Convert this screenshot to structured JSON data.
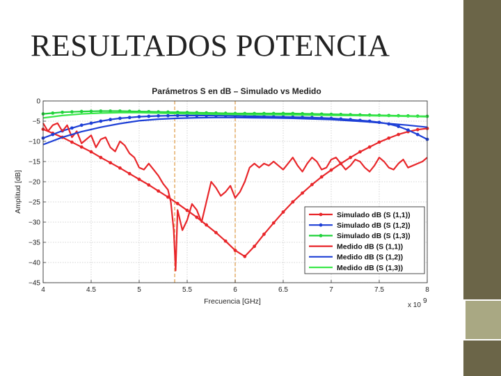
{
  "slide": {
    "title": "RESULTADOS POTENCIA",
    "colors": {
      "bar_dark": "#6b6548",
      "bar_light": "#a9a883",
      "title_text": "#222222"
    }
  },
  "chart_data": {
    "type": "line",
    "title": "Parámetros S en dB – Simulado vs Medido",
    "xlabel": "Frecuencia [GHz]",
    "ylabel": "Amplitud [dB]",
    "x_exponent_label": "x 10",
    "x_exponent_power": "9",
    "xlim": [
      4,
      8
    ],
    "ylim": [
      -45,
      0
    ],
    "xticks": [
      4,
      4.5,
      5,
      5.5,
      6,
      6.5,
      7,
      7.5,
      8
    ],
    "xtick_labels": [
      "4",
      "4.5",
      "5",
      "5.5",
      "6",
      "6.5",
      "7",
      "7.5",
      "8"
    ],
    "yticks": [
      0,
      -5,
      -10,
      -15,
      -20,
      -25,
      -30,
      -35,
      -40,
      -45
    ],
    "ytick_labels": [
      "0",
      "−5",
      "−10",
      "−15",
      "−20",
      "−25",
      "−30",
      "−35",
      "−40",
      "−45"
    ],
    "grid": true,
    "legend_position": "bottom-right",
    "vertical_markers": [
      {
        "x": 5.37,
        "color": "#e0a050"
      },
      {
        "x": 6.0,
        "color": "#e0a050"
      }
    ],
    "series": [
      {
        "name": "Simulado dB (S (1,1))",
        "color": "#e8262a",
        "marker": true,
        "x": [
          4.0,
          4.1,
          4.2,
          4.3,
          4.4,
          4.5,
          4.6,
          4.7,
          4.8,
          4.9,
          5.0,
          5.1,
          5.2,
          5.3,
          5.4,
          5.5,
          5.6,
          5.7,
          5.8,
          5.9,
          6.0,
          6.1,
          6.2,
          6.3,
          6.4,
          6.5,
          6.6,
          6.7,
          6.8,
          6.9,
          7.0,
          7.1,
          7.2,
          7.3,
          7.4,
          7.5,
          7.6,
          7.7,
          7.8,
          7.9,
          8.0
        ],
        "y": [
          -7,
          -8,
          -9,
          -10.2,
          -11.4,
          -12.6,
          -14,
          -15.3,
          -16.6,
          -18,
          -19.4,
          -20.8,
          -22.3,
          -23.8,
          -25.4,
          -27.1,
          -28.8,
          -30.7,
          -32.6,
          -34.7,
          -37,
          -38.5,
          -36,
          -33,
          -30.2,
          -27.5,
          -25,
          -22.8,
          -20.7,
          -18.8,
          -17.1,
          -15.5,
          -14,
          -12.6,
          -11.4,
          -10.2,
          -9.2,
          -8.3,
          -7.6,
          -7.1,
          -6.8
        ]
      },
      {
        "name": "Simulado dB (S (1,2))",
        "color": "#1d3fd6",
        "marker": true,
        "x": [
          4.0,
          4.1,
          4.2,
          4.3,
          4.4,
          4.5,
          4.6,
          4.7,
          4.8,
          4.9,
          5.0,
          5.1,
          5.2,
          5.3,
          5.4,
          5.5,
          5.6,
          5.7,
          5.8,
          5.9,
          6.0,
          6.1,
          6.2,
          6.3,
          6.4,
          6.5,
          6.6,
          6.7,
          6.8,
          6.9,
          7.0,
          7.1,
          7.2,
          7.3,
          7.4,
          7.5,
          7.6,
          7.7,
          7.8,
          7.9,
          8.0
        ],
        "y": [
          -9.2,
          -8.3,
          -7.4,
          -6.7,
          -6.0,
          -5.5,
          -5.0,
          -4.6,
          -4.3,
          -4.1,
          -3.9,
          -3.8,
          -3.7,
          -3.65,
          -3.6,
          -3.6,
          -3.6,
          -3.6,
          -3.62,
          -3.65,
          -3.7,
          -3.75,
          -3.8,
          -3.85,
          -3.9,
          -3.95,
          -4.0,
          -4.05,
          -4.1,
          -4.2,
          -4.3,
          -4.45,
          -4.6,
          -4.8,
          -5.0,
          -5.3,
          -5.7,
          -6.3,
          -7.2,
          -8.3,
          -9.5
        ]
      },
      {
        "name": "Simulado dB (S (1,3))",
        "color": "#1fd23a",
        "marker": true,
        "x": [
          4.0,
          4.1,
          4.2,
          4.3,
          4.4,
          4.5,
          4.6,
          4.7,
          4.8,
          4.9,
          5.0,
          5.1,
          5.2,
          5.3,
          5.4,
          5.5,
          5.6,
          5.7,
          5.8,
          5.9,
          6.0,
          6.1,
          6.2,
          6.3,
          6.4,
          6.5,
          6.6,
          6.7,
          6.8,
          6.9,
          7.0,
          7.1,
          7.2,
          7.3,
          7.4,
          7.5,
          7.6,
          7.7,
          7.8,
          7.9,
          8.0
        ],
        "y": [
          -3.2,
          -3.0,
          -2.8,
          -2.7,
          -2.6,
          -2.55,
          -2.5,
          -2.5,
          -2.5,
          -2.55,
          -2.6,
          -2.65,
          -2.7,
          -2.75,
          -2.8,
          -2.85,
          -2.9,
          -2.95,
          -3.0,
          -3.05,
          -3.1,
          -3.1,
          -3.1,
          -3.1,
          -3.1,
          -3.1,
          -3.1,
          -3.15,
          -3.2,
          -3.25,
          -3.3,
          -3.35,
          -3.4,
          -3.45,
          -3.5,
          -3.55,
          -3.6,
          -3.65,
          -3.7,
          -3.75,
          -3.8
        ]
      },
      {
        "name": "Medido dB (S (1,1))",
        "color": "#e8262a",
        "marker": false,
        "x": [
          4.0,
          4.05,
          4.1,
          4.15,
          4.2,
          4.25,
          4.3,
          4.35,
          4.4,
          4.45,
          4.5,
          4.55,
          4.6,
          4.65,
          4.7,
          4.75,
          4.8,
          4.85,
          4.9,
          4.95,
          5.0,
          5.05,
          5.1,
          5.15,
          5.2,
          5.25,
          5.3,
          5.33,
          5.36,
          5.38,
          5.4,
          5.45,
          5.5,
          5.55,
          5.6,
          5.65,
          5.7,
          5.75,
          5.8,
          5.85,
          5.9,
          5.95,
          6.0,
          6.05,
          6.1,
          6.15,
          6.2,
          6.25,
          6.3,
          6.35,
          6.4,
          6.45,
          6.5,
          6.55,
          6.6,
          6.65,
          6.7,
          6.75,
          6.8,
          6.85,
          6.9,
          6.95,
          7.0,
          7.05,
          7.1,
          7.15,
          7.2,
          7.25,
          7.3,
          7.35,
          7.4,
          7.45,
          7.5,
          7.55,
          7.6,
          7.65,
          7.7,
          7.75,
          7.8,
          7.85,
          7.9,
          7.95,
          8.0
        ],
        "y": [
          -5.5,
          -7.5,
          -6.0,
          -5.5,
          -7.5,
          -6.0,
          -9.0,
          -7.5,
          -10.5,
          -9.5,
          -8.5,
          -11.5,
          -9.5,
          -9.0,
          -11.5,
          -12.5,
          -10.0,
          -11.0,
          -13.0,
          -14.0,
          -16.5,
          -17.0,
          -15.5,
          -17.0,
          -18.5,
          -20.5,
          -22.0,
          -25.0,
          -32.0,
          -42.0,
          -27.0,
          -32.0,
          -29.5,
          -25.5,
          -27.0,
          -30.0,
          -25.0,
          -20.0,
          -21.5,
          -23.5,
          -22.5,
          -21.0,
          -24.0,
          -22.5,
          -20.0,
          -16.5,
          -15.5,
          -16.5,
          -15.5,
          -16.0,
          -15.0,
          -16.0,
          -17.0,
          -15.5,
          -14.0,
          -16.0,
          -17.5,
          -15.5,
          -14.0,
          -15.0,
          -17.0,
          -16.5,
          -14.5,
          -14.0,
          -15.5,
          -17.0,
          -16.0,
          -14.5,
          -15.0,
          -16.5,
          -17.5,
          -16.0,
          -14.0,
          -15.0,
          -16.5,
          -17.0,
          -15.5,
          -14.5,
          -16.5,
          -16.0,
          -15.5,
          -15.0,
          -14.0
        ]
      },
      {
        "name": "Medido dB (S (1,2))",
        "color": "#1d3fd6",
        "marker": false,
        "x": [
          4.0,
          4.2,
          4.4,
          4.6,
          4.8,
          5.0,
          5.2,
          5.4,
          5.6,
          5.8,
          6.0,
          6.2,
          6.4,
          6.6,
          6.8,
          7.0,
          7.2,
          7.4,
          7.6,
          7.8,
          8.0
        ],
        "y": [
          -10.8,
          -9.0,
          -7.6,
          -6.5,
          -5.6,
          -4.9,
          -4.5,
          -4.3,
          -4.15,
          -4.1,
          -4.1,
          -4.15,
          -4.2,
          -4.3,
          -4.45,
          -4.6,
          -4.9,
          -5.2,
          -5.6,
          -6.0,
          -6.5
        ]
      },
      {
        "name": "Medido dB (S (1,3))",
        "color": "#3ae84a",
        "marker": false,
        "x": [
          4.0,
          4.2,
          4.4,
          4.6,
          4.8,
          5.0,
          5.2,
          5.4,
          5.6,
          5.8,
          6.0,
          6.2,
          6.4,
          6.6,
          6.8,
          7.0,
          7.2,
          7.4,
          7.6,
          7.8,
          8.0
        ],
        "y": [
          -4.2,
          -3.6,
          -3.2,
          -3.0,
          -2.9,
          -2.9,
          -3.0,
          -3.1,
          -3.2,
          -3.3,
          -3.35,
          -3.4,
          -3.4,
          -3.45,
          -3.5,
          -3.55,
          -3.6,
          -3.65,
          -3.7,
          -3.8,
          -3.9
        ]
      }
    ]
  }
}
